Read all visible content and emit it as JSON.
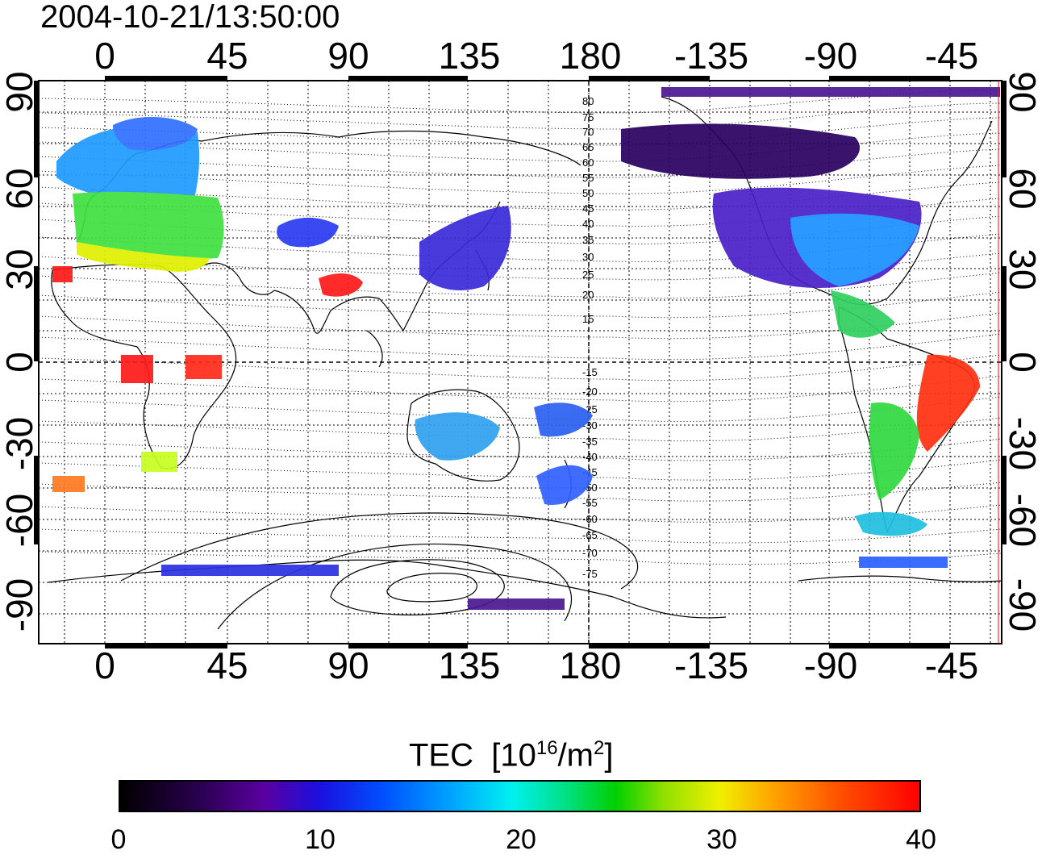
{
  "timestamp": "2004-10-21/13:50:00",
  "longitude_ticks": [
    "0",
    "45",
    "90",
    "135",
    "180",
    "-135",
    "-90",
    "-45"
  ],
  "latitude_ticks": [
    "90",
    "60",
    "30",
    "0",
    "-30",
    "-60",
    "-90"
  ],
  "contour_labels_north": [
    "80",
    "75",
    "70",
    "65",
    "60",
    "55",
    "50",
    "45",
    "40",
    "35",
    "30",
    "25",
    "20",
    "15"
  ],
  "contour_labels_south": [
    "-15",
    "-20",
    "-25",
    "-30",
    "-35",
    "-40",
    "-45",
    "-50",
    "-55",
    "-60",
    "-65",
    "-70",
    "-75"
  ],
  "colorbar": {
    "title": "TEC",
    "unit_base": "[10",
    "unit_exp": "16",
    "unit_mid": "/m",
    "unit_exp2": "2",
    "unit_end": "]",
    "ticks": [
      "0",
      "10",
      "20",
      "30",
      "40"
    ],
    "range": [
      0,
      40
    ]
  },
  "colors": {
    "low": "#000000",
    "purple": "#4b0096",
    "blue": "#0028ff",
    "cyan": "#00e6ff",
    "green": "#00d000",
    "yellow": "#f0f000",
    "orange": "#ff8c00",
    "high": "#ff0000"
  }
}
